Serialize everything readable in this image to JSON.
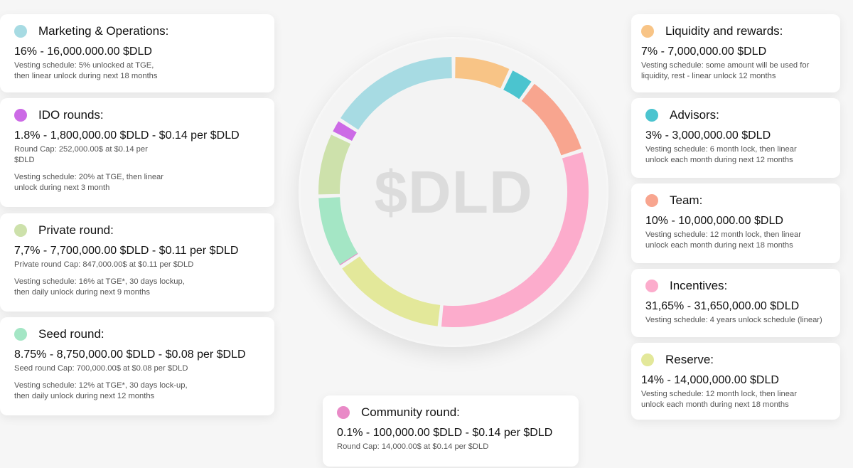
{
  "chart_data": {
    "type": "pie",
    "variant": "donut",
    "title": "$DLD",
    "unit": "%",
    "slices": [
      {
        "label": "Liquidity and rewards",
        "value": 7,
        "color": "#f8c486"
      },
      {
        "label": "Advisors",
        "value": 3,
        "color": "#4bc4cf"
      },
      {
        "label": "Team",
        "value": 10,
        "color": "#f8a58f"
      },
      {
        "label": "Incentives",
        "value": 31.65,
        "color": "#fcaccc"
      },
      {
        "label": "Reserve",
        "value": 14,
        "color": "#e3e89a"
      },
      {
        "label": "Community round",
        "value": 0.1,
        "color": "#e98ac7"
      },
      {
        "label": "Seed round",
        "value": 8.75,
        "color": "#a4e6c5"
      },
      {
        "label": "Private round",
        "value": 7.7,
        "color": "#cde1ab"
      },
      {
        "label": "IDO rounds",
        "value": 1.8,
        "color": "#cc6ae6"
      },
      {
        "label": "Marketing & Operations",
        "value": 16,
        "color": "#a7dbe3"
      }
    ]
  },
  "center_label": "$DLD",
  "cards": {
    "marketing": {
      "title": "Marketing & Operations:",
      "amount": "16% - 16,000.000.00 $DLD",
      "note1": "Vesting schedule: 5% unlocked at TGE,",
      "note2": "then linear unlock during next 18 months"
    },
    "ido": {
      "title": "IDO rounds:",
      "amount": "1.8% - 1,800,000.00 $DLD - $0.14 per $DLD",
      "note1": "Round Cap: 252,000.00$ at $0.14 per",
      "note2": "$DLD",
      "note3": "Vesting schedule: 20% at TGE, then linear",
      "note4": "unlock during next 3 month"
    },
    "private": {
      "title": "Private round:",
      "amount": "7,7% - 7,700,000.00 $DLD - $0.11 per $DLD",
      "note1": "Private round Cap: 847,000.00$ at $0.11 per $DLD",
      "note2": "Vesting schedule: 16% at TGE*, 30 days lockup,",
      "note3": "then daily unlock during next 9 months"
    },
    "seed": {
      "title": "Seed round:",
      "amount": "8.75% - 8,750,000.00 $DLD - $0.08 per $DLD",
      "note1": "Seed round Cap: 700,000.00$ at $0.08 per $DLD",
      "note2": "Vesting schedule: 12% at TGE*, 30 days lock-up,",
      "note3": "then daily unlock during next 12 months"
    },
    "community": {
      "title": "Community round:",
      "amount": "0.1% - 100,000.00 $DLD - $0.14 per $DLD",
      "note1": "Round Cap: 14,000.00$ at $0.14 per $DLD"
    },
    "liquidity": {
      "title": "Liquidity and rewards:",
      "amount": "7% - 7,000,000.00 $DLD",
      "note1": "Vesting schedule: some amount will be used for",
      "note2": "liquidity, rest - linear unlock 12 months"
    },
    "advisors": {
      "title": "Advisors:",
      "amount": "3% - 3,000,000.00 $DLD",
      "note1": "Vesting schedule: 6 month lock, then linear",
      "note2": "unlock each month during next 12 months"
    },
    "team": {
      "title": "Team:",
      "amount": "10% - 10,000,000.00 $DLD",
      "note1": "Vesting schedule: 12 month lock, then linear",
      "note2": "unlock each month during next 18 months"
    },
    "incentives": {
      "title": "Incentives:",
      "amount": "31,65% - 31,650,000.00 $DLD",
      "note1": "Vesting schedule: 4 years unlock schedule (linear)"
    },
    "reserve": {
      "title": "Reserve:",
      "amount": "14% - 14,000,000.00 $DLD",
      "note1": "Vesting schedule: 12 month lock, then linear",
      "note2": "unlock each month during next 18 months"
    }
  },
  "colors": {
    "marketing": "#a7dbe3",
    "ido": "#cc6ae6",
    "private": "#cde1ab",
    "seed": "#a4e6c5",
    "community": "#e98ac7",
    "liquidity": "#f8c486",
    "advisors": "#4bc4cf",
    "team": "#f8a58f",
    "incentives": "#fcaccc",
    "reserve": "#e3e89a"
  }
}
